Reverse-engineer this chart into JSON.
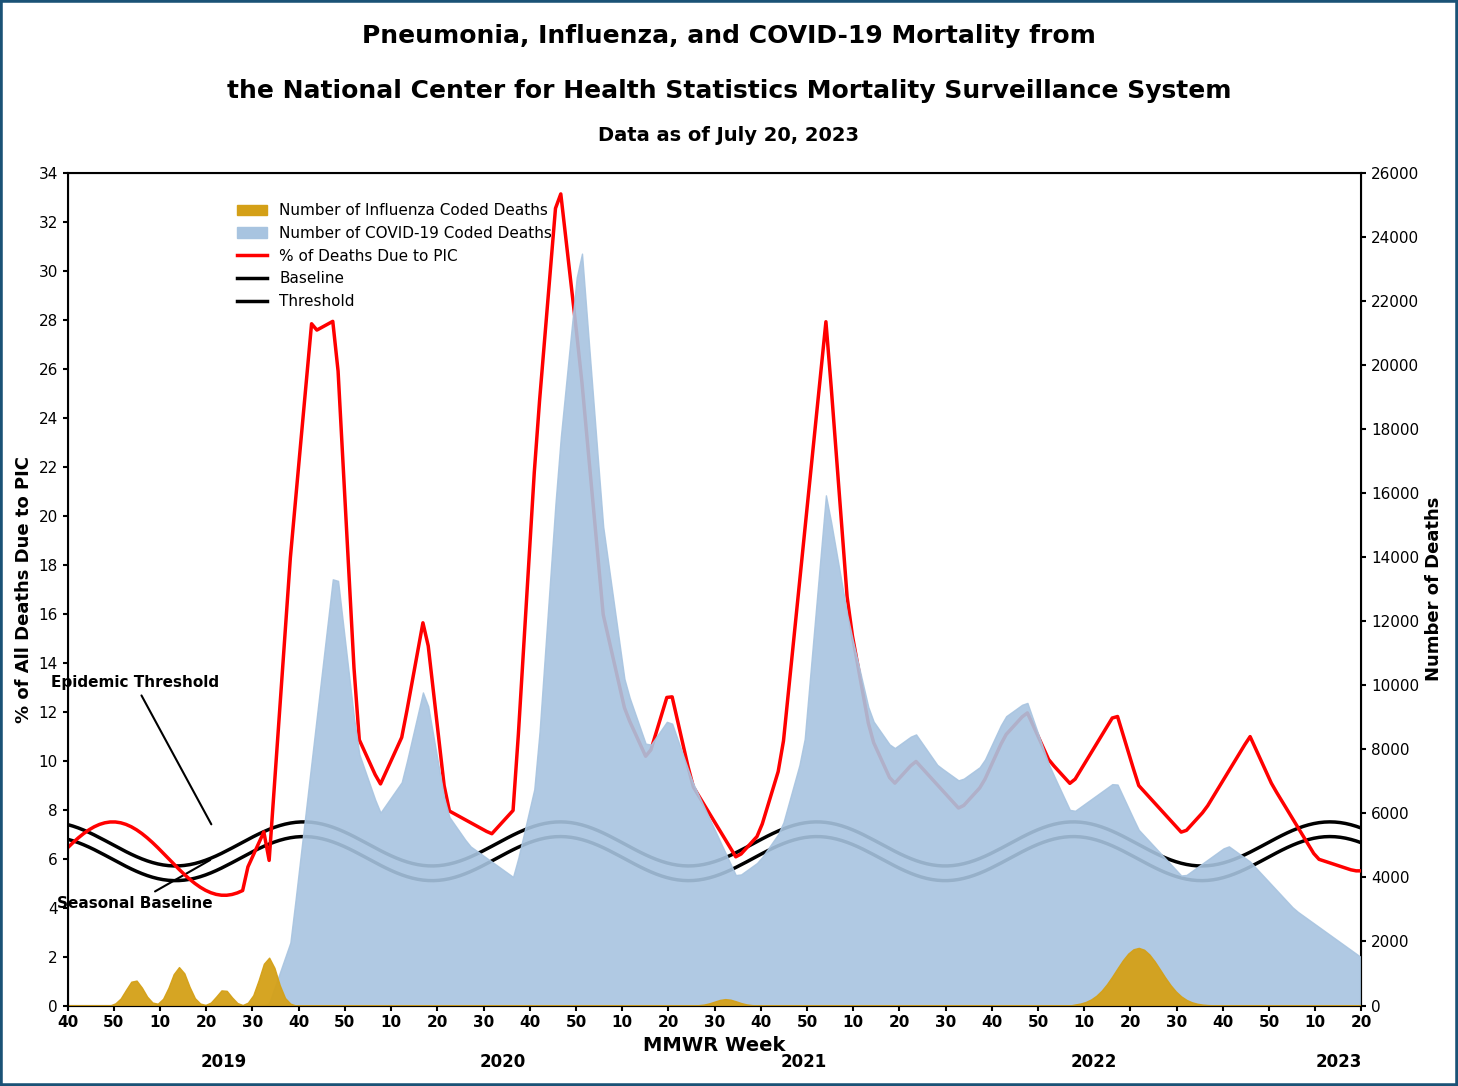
{
  "title_line1": "Pneumonia, Influenza, and COVID-19 Mortality from",
  "title_line2": "the National Center for Health Statistics Mortality Surveillance System",
  "title_line3": "Data as of July 20, 2023",
  "xlabel": "MMWR Week",
  "ylabel_left": "% of All Deaths Due to PIC",
  "ylabel_right": "Number of Deaths",
  "ylim_left": [
    0,
    34
  ],
  "ylim_right": [
    0,
    26000
  ],
  "yticks_left": [
    0,
    2,
    4,
    6,
    8,
    10,
    12,
    14,
    16,
    18,
    20,
    22,
    24,
    26,
    28,
    30,
    32,
    34
  ],
  "yticks_right": [
    0,
    2000,
    4000,
    6000,
    8000,
    10000,
    12000,
    14000,
    16000,
    18000,
    20000,
    22000,
    24000,
    26000
  ],
  "xtick_labels": [
    "40",
    "50",
    "10",
    "20",
    "30",
    "40",
    "50",
    "10",
    "20",
    "30",
    "40",
    "50",
    "10",
    "20",
    "30",
    "40",
    "50",
    "10",
    "20",
    "30",
    "40",
    "50",
    "10",
    "20",
    "30",
    "40",
    "50",
    "10",
    "20"
  ],
  "year_labels": [
    "2019",
    "2020",
    "2021",
    "2022",
    "2023"
  ],
  "year_positions": [
    7,
    20,
    33,
    46,
    57
  ],
  "background_color": "#ffffff",
  "border_color": "#1a5276",
  "covid_color": "#a8c4e0",
  "influenza_color": "#d4a017",
  "pic_line_color": "#ff0000",
  "baseline_color": "#000000",
  "threshold_color": "#000000",
  "annotation_epidemic": "Epidemic Threshold",
  "annotation_seasonal": "Seasonal Baseline"
}
